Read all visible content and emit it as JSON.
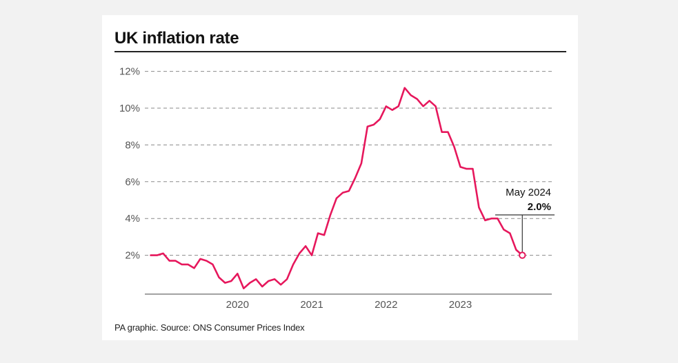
{
  "chart_data": {
    "type": "line",
    "title": "UK inflation rate",
    "source": "PA graphic. Source: ONS Consumer Prices Index",
    "xlabel": "",
    "ylabel": "",
    "y_ticks": [
      2,
      4,
      6,
      8,
      10,
      12
    ],
    "y_tick_labels": [
      "2%",
      "4%",
      "6%",
      "8%",
      "10%",
      "12%"
    ],
    "ylim": [
      0,
      12
    ],
    "x_tick_labels": [
      "2020",
      "2021",
      "2022",
      "2023"
    ],
    "grid": "horizontal-dashed",
    "line_color": "#e6175c",
    "annotation": {
      "date_label": "May 2024",
      "value_label": "2.0%"
    },
    "series": [
      {
        "x": [
          "2019-05",
          "2019-06",
          "2019-07",
          "2019-08",
          "2019-09",
          "2019-10",
          "2019-11",
          "2019-12",
          "2020-01",
          "2020-02",
          "2020-03",
          "2020-04",
          "2020-05",
          "2020-06",
          "2020-07",
          "2020-08",
          "2020-09",
          "2020-10",
          "2020-11",
          "2020-12",
          "2021-01",
          "2021-02",
          "2021-03",
          "2021-04",
          "2021-05",
          "2021-06",
          "2021-07",
          "2021-08",
          "2021-09",
          "2021-10",
          "2021-11",
          "2021-12",
          "2022-01",
          "2022-02",
          "2022-03",
          "2022-04",
          "2022-05",
          "2022-06",
          "2022-07",
          "2022-08",
          "2022-09",
          "2022-10",
          "2022-11",
          "2022-12",
          "2023-01",
          "2023-02",
          "2023-03",
          "2023-04",
          "2023-05",
          "2023-06",
          "2023-07",
          "2023-08",
          "2023-09",
          "2023-10",
          "2023-11",
          "2023-12",
          "2024-01",
          "2024-02",
          "2024-03",
          "2024-04",
          "2024-05"
        ],
        "values": [
          2.0,
          2.0,
          2.1,
          1.7,
          1.7,
          1.5,
          1.5,
          1.3,
          1.8,
          1.7,
          1.5,
          0.8,
          0.5,
          0.6,
          1.0,
          0.2,
          0.5,
          0.7,
          0.3,
          0.6,
          0.7,
          0.4,
          0.7,
          1.5,
          2.1,
          2.5,
          2.0,
          3.2,
          3.1,
          4.2,
          5.1,
          5.4,
          5.5,
          6.2,
          7.0,
          9.0,
          9.1,
          9.4,
          10.1,
          9.9,
          10.1,
          11.1,
          10.7,
          10.5,
          10.1,
          10.4,
          10.1,
          8.7,
          8.7,
          7.9,
          6.8,
          6.7,
          6.7,
          4.6,
          3.9,
          4.0,
          4.0,
          3.4,
          3.2,
          2.3,
          2.0
        ]
      }
    ]
  }
}
